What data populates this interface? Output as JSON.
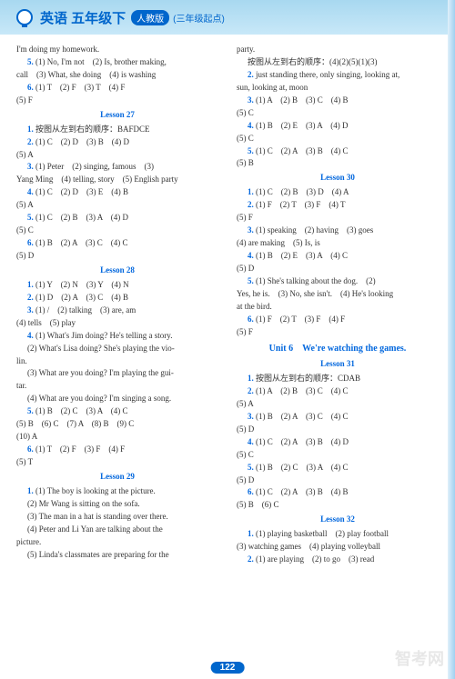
{
  "header": {
    "title": "英语 五年级下",
    "badge": "人教版",
    "sub": "(三年级起点)"
  },
  "page": "122",
  "watermark": "智考网",
  "left": [
    {
      "t": "ln",
      "v": "I'm doing my homework."
    },
    {
      "t": "ind",
      "v": "<b>5.</b> (1) No, I'm not　(2) Is, brother making,"
    },
    {
      "t": "ln",
      "v": "call　(3) What, she doing　(4) is washing"
    },
    {
      "t": "ind",
      "v": "<b>6.</b> (1) T　(2) F　(3) T　(4) F"
    },
    {
      "t": "ln",
      "v": "(5) F"
    },
    {
      "t": "lesson",
      "v": "Lesson 27"
    },
    {
      "t": "ind",
      "v": "<b>1.</b> 按图从左到右的顺序：BAFDCE"
    },
    {
      "t": "ind",
      "v": "<b>2.</b> (1) C　(2) D　(3) B　(4) D"
    },
    {
      "t": "ln",
      "v": "(5) A"
    },
    {
      "t": "ind",
      "v": "<b>3.</b> (1) Peter　(2) singing, famous　(3)"
    },
    {
      "t": "ln",
      "v": "Yang Ming　(4) telling, story　(5) English party"
    },
    {
      "t": "ind",
      "v": "<b>4.</b> (1) C　(2) D　(3) E　(4) B"
    },
    {
      "t": "ln",
      "v": "(5) A"
    },
    {
      "t": "ind",
      "v": "<b>5.</b> (1) C　(2) B　(3) A　(4) D"
    },
    {
      "t": "ln",
      "v": "(5) C"
    },
    {
      "t": "ind",
      "v": "<b>6.</b> (1) B　(2) A　(3) C　(4) C"
    },
    {
      "t": "ln",
      "v": "(5) D"
    },
    {
      "t": "lesson",
      "v": "Lesson 28"
    },
    {
      "t": "ind",
      "v": "<b>1.</b> (1) Y　(2) N　(3) Y　(4) N"
    },
    {
      "t": "ind",
      "v": "<b>2.</b> (1) D　(2) A　(3) C　(4) B"
    },
    {
      "t": "ind",
      "v": "<b>3.</b> (1) /　(2) talking　(3) are, am"
    },
    {
      "t": "ln",
      "v": "(4) tells　(5) play"
    },
    {
      "t": "ind",
      "v": "<b>4.</b> (1) What's Jim doing? He's telling a story."
    },
    {
      "t": "ind",
      "v": "(2) What's Lisa doing? She's playing the vio-"
    },
    {
      "t": "ln",
      "v": "lin."
    },
    {
      "t": "ind",
      "v": "(3) What are you doing? I'm playing the gui-"
    },
    {
      "t": "ln",
      "v": "tar."
    },
    {
      "t": "ind",
      "v": "(4) What are you doing? I'm singing a song."
    },
    {
      "t": "ind",
      "v": "<b>5.</b> (1) B　(2) C　(3) A　(4) C"
    },
    {
      "t": "ln",
      "v": "(5) B　(6) C　(7) A　(8) B　(9) C"
    },
    {
      "t": "ln",
      "v": "(10) A"
    },
    {
      "t": "ind",
      "v": "<b>6.</b> (1) T　(2) F　(3) F　(4) F"
    },
    {
      "t": "ln",
      "v": "(5) T"
    },
    {
      "t": "lesson",
      "v": "Lesson 29"
    },
    {
      "t": "ind",
      "v": "<b>1.</b> (1) The boy is looking at the picture."
    },
    {
      "t": "ind",
      "v": "(2) Mr Wang is sitting on the sofa."
    },
    {
      "t": "ind",
      "v": "(3) The man in a hat is standing over there."
    },
    {
      "t": "ind",
      "v": "(4) Peter and Li Yan are talking about the"
    },
    {
      "t": "ln",
      "v": "picture."
    },
    {
      "t": "ind",
      "v": "(5) Linda's classmates are preparing for the"
    }
  ],
  "right": [
    {
      "t": "ln",
      "v": "party."
    },
    {
      "t": "ind",
      "v": "按图从左到右的顺序：(4)(2)(5)(1)(3)"
    },
    {
      "t": "ind",
      "v": "<b>2.</b> just standing there, only singing, looking at,"
    },
    {
      "t": "ln",
      "v": "sun, looking at, moon"
    },
    {
      "t": "ind",
      "v": "<b>3.</b> (1) A　(2) B　(3) C　(4) B"
    },
    {
      "t": "ln",
      "v": "(5) C"
    },
    {
      "t": "ind",
      "v": "<b>4.</b> (1) B　(2) E　(3) A　(4) D"
    },
    {
      "t": "ln",
      "v": "(5) C"
    },
    {
      "t": "ind",
      "v": "<b>5.</b> (1) C　(2) A　(3) B　(4) C"
    },
    {
      "t": "ln",
      "v": "(5) B"
    },
    {
      "t": "lesson",
      "v": "Lesson 30"
    },
    {
      "t": "ind",
      "v": "<b>1.</b> (1) C　(2) B　(3) D　(4) A"
    },
    {
      "t": "ind",
      "v": "<b>2.</b> (1) F　(2) T　(3) F　(4) T"
    },
    {
      "t": "ln",
      "v": "(5) F"
    },
    {
      "t": "ind",
      "v": "<b>3.</b> (1) speaking　(2) having　(3) goes"
    },
    {
      "t": "ln",
      "v": "(4) are making　(5) Is, is"
    },
    {
      "t": "ind",
      "v": "<b>4.</b> (1) B　(2) E　(3) A　(4) C"
    },
    {
      "t": "ln",
      "v": "(5) D"
    },
    {
      "t": "ind",
      "v": "<b>5.</b> (1) She's talking about the dog.　(2)"
    },
    {
      "t": "ln",
      "v": "Yes, he is.　(3) No, she isn't.　(4) He's looking"
    },
    {
      "t": "ln",
      "v": "at the bird."
    },
    {
      "t": "ind",
      "v": "<b>6.</b> (1) F　(2) T　(3) F　(4) F"
    },
    {
      "t": "ln",
      "v": "(5) F"
    },
    {
      "t": "unit",
      "v": "Unit 6　We're watching the games."
    },
    {
      "t": "lesson",
      "v": "Lesson 31"
    },
    {
      "t": "ind",
      "v": "<b>1.</b> 按图从左到右的顺序：CDAB"
    },
    {
      "t": "ind",
      "v": "<b>2.</b> (1) A　(2) B　(3) C　(4) C"
    },
    {
      "t": "ln",
      "v": "(5) A"
    },
    {
      "t": "ind",
      "v": "<b>3.</b> (1) B　(2) A　(3) C　(4) C"
    },
    {
      "t": "ln",
      "v": "(5) D"
    },
    {
      "t": "ind",
      "v": "<b>4.</b> (1) C　(2) A　(3) B　(4) D"
    },
    {
      "t": "ln",
      "v": "(5) C"
    },
    {
      "t": "ind",
      "v": "<b>5.</b> (1) B　(2) C　(3) A　(4) C"
    },
    {
      "t": "ln",
      "v": "(5) D"
    },
    {
      "t": "ind",
      "v": "<b>6.</b> (1) C　(2) A　(3) B　(4) B"
    },
    {
      "t": "ln",
      "v": "(5) B　(6) C"
    },
    {
      "t": "lesson",
      "v": "Lesson 32"
    },
    {
      "t": "ind",
      "v": "<b>1.</b> (1) playing basketball　(2) play football"
    },
    {
      "t": "ln",
      "v": "(3) watching games　(4) playing volleyball"
    },
    {
      "t": "ind",
      "v": "<b>2.</b> (1) are playing　(2) to go　(3) read"
    }
  ]
}
